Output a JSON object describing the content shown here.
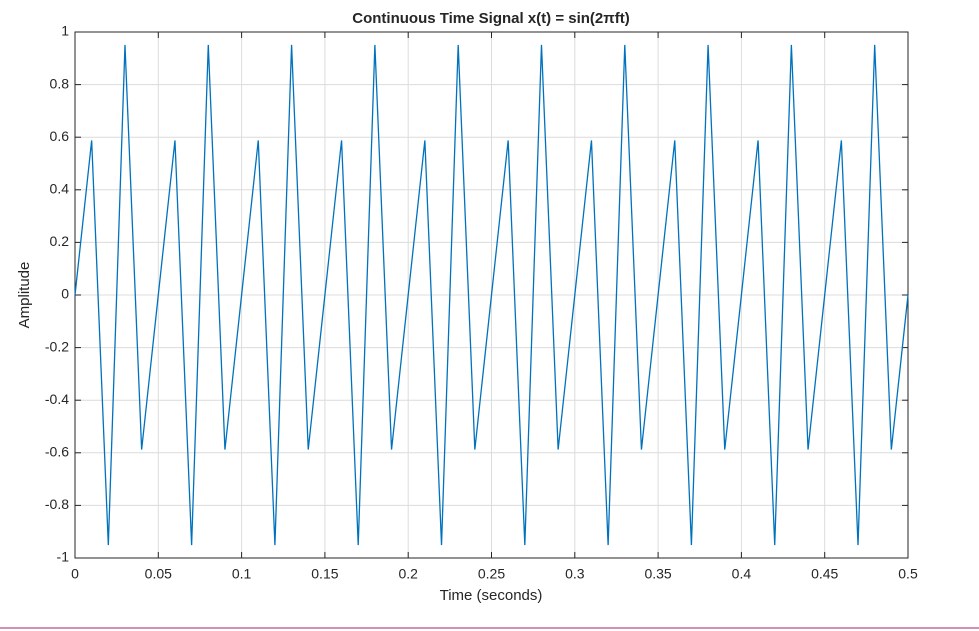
{
  "chart_data": {
    "type": "line",
    "title": "Continuous Time Signal x(t) = sin(2πft)",
    "xlabel": "Time (seconds)",
    "ylabel": "Amplitude",
    "x": [
      0,
      0.01,
      0.02,
      0.03,
      0.04,
      0.05,
      0.06,
      0.07,
      0.08,
      0.09,
      0.1,
      0.11,
      0.12,
      0.13,
      0.14,
      0.15,
      0.16,
      0.17,
      0.18,
      0.19,
      0.2,
      0.21,
      0.22,
      0.23,
      0.24,
      0.25,
      0.26,
      0.27,
      0.28,
      0.29,
      0.3,
      0.31,
      0.32,
      0.33,
      0.34,
      0.35,
      0.36,
      0.37,
      0.38,
      0.39,
      0.4,
      0.41,
      0.42,
      0.43,
      0.44,
      0.45,
      0.46,
      0.47,
      0.48,
      0.49,
      0.5
    ],
    "series": [
      {
        "color": "#0072bd",
        "values": [
          0,
          0.5878,
          -0.9511,
          0.9511,
          -0.5878,
          0,
          0.5878,
          -0.9511,
          0.9511,
          -0.5878,
          0,
          0.5878,
          -0.9511,
          0.9511,
          -0.5878,
          0,
          0.5878,
          -0.9511,
          0.9511,
          -0.5878,
          0,
          0.5878,
          -0.9511,
          0.9511,
          -0.5878,
          0,
          0.5878,
          -0.9511,
          0.9511,
          -0.5878,
          0,
          0.5878,
          -0.9511,
          0.9511,
          -0.5878,
          0,
          0.5878,
          -0.9511,
          0.9511,
          -0.5878,
          0,
          0.5878,
          -0.9511,
          0.9511,
          -0.5878,
          0,
          0.5878,
          -0.9511,
          0.9511,
          -0.5878,
          0
        ]
      }
    ],
    "xlim": [
      0,
      0.5
    ],
    "xticks": [
      0,
      0.05,
      0.1,
      0.15,
      0.2,
      0.25,
      0.3,
      0.35,
      0.4,
      0.45,
      0.5
    ],
    "ylim": [
      -1,
      1
    ],
    "yticks": [
      -1,
      -0.8,
      -0.6,
      -0.4,
      -0.2,
      0,
      0.2,
      0.4,
      0.6,
      0.8,
      1
    ],
    "grid": true
  }
}
